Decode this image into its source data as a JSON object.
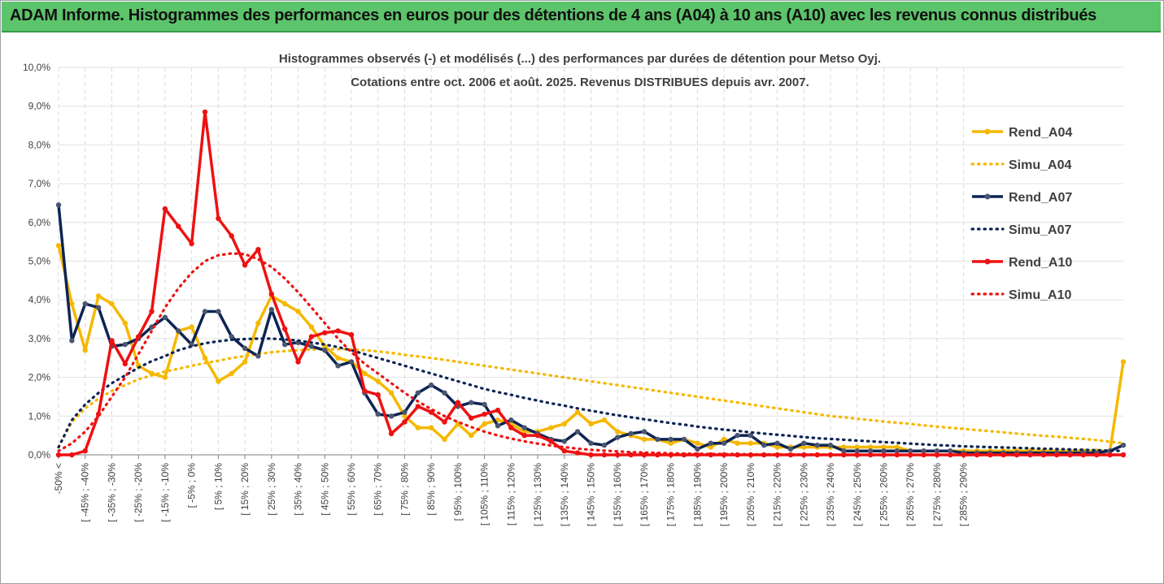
{
  "banner": {
    "title": "ADAM Informe. Histogrammes des performances en euros pour des détentions de 4 ans (A04) à 10 ans (A10) avec les revenus connus distribués"
  },
  "colors": {
    "banner": "#5cc46a",
    "A04": "#f5b800",
    "A07": "#0d2454",
    "A10": "#ee1111",
    "markerA07": "#4a5670"
  },
  "chart_data": {
    "type": "line",
    "title_line1": "Histogrammes observés (-) et modélisés (...) des performances par durées de détention pour Metso Oyj.",
    "title_line2": "Cotations entre oct. 2006 et août. 2025.  Revenus DISTRIBUES depuis avr. 2007.",
    "ylim": [
      0,
      10
    ],
    "y_ticks": [
      "0,0%",
      "1,0%",
      "2,0%",
      "3,0%",
      "4,0%",
      "5,0%",
      "6,0%",
      "7,0%",
      "8,0%",
      "9,0%",
      "10,0%"
    ],
    "x_labels": [
      "-50% <",
      "[ -45% ; -40%",
      "[ -35% ; -30%",
      "[ -25% ; -20%",
      "[ -15% ; -10%",
      "[ -5% ; 0%",
      "[ 5% ; 10%",
      "[ 15% ; 20%",
      "[ 25% ; 30%",
      "[ 35% ; 40%",
      "[ 45% ; 50%",
      "[ 55% ; 60%",
      "[ 65% ; 70%",
      "[ 75% ; 80%",
      "[ 85% ; 90%",
      "[ 95% ; 100%",
      "[ 105% ; 110%",
      "[ 115% ; 120%",
      "[ 125% ; 130%",
      "[ 135% ; 140%",
      "[ 145% ; 150%",
      "[ 155% ; 160%",
      "[ 165% ; 170%",
      "[ 175% ; 180%",
      "[ 185% ; 190%",
      "[ 195% ; 200%",
      "[ 205% ; 210%",
      "[ 215% ; 220%",
      "[ 225% ; 230%",
      "[ 235% ; 240%",
      "[ 245% ; 250%",
      "[ 255% ; 260%",
      "[ 265% ; 270%",
      "[ 275% ; 280%",
      "[ 285% ; 290%"
    ],
    "legend_position": "right",
    "series": [
      {
        "name": "Rend_A04",
        "style": "solid",
        "color": "#f5b800",
        "values": [
          5.4,
          3.9,
          2.7,
          4.1,
          3.9,
          3.4,
          2.3,
          2.1,
          2.0,
          3.2,
          3.3,
          2.5,
          1.9,
          2.1,
          2.4,
          3.4,
          4.1,
          3.9,
          3.7,
          3.3,
          2.8,
          2.5,
          2.4,
          2.1,
          1.9,
          1.6,
          1.0,
          0.7,
          0.7,
          0.4,
          0.8,
          0.5,
          0.8,
          0.9,
          0.8,
          0.6,
          0.6,
          0.7,
          0.8,
          1.1,
          0.8,
          0.9,
          0.6,
          0.5,
          0.4,
          0.4,
          0.3,
          0.4,
          0.3,
          0.2,
          0.4,
          0.3,
          0.3,
          0.3,
          0.2,
          0.2,
          0.2,
          0.2,
          0.2,
          0.2,
          0.2,
          0.2,
          0.2,
          0.2,
          0.1,
          0.1,
          0.1,
          0.1,
          0.1,
          0.1,
          0.1,
          0.1,
          0.1,
          0.1,
          0.1,
          0.1,
          0.1,
          0.1,
          0.1,
          0.1,
          2.4
        ]
      },
      {
        "name": "Simu_A04",
        "style": "dotted",
        "color": "#f5b800",
        "values": [
          0.2,
          0.85,
          1.2,
          1.45,
          1.65,
          1.8,
          1.95,
          2.05,
          2.15,
          2.22,
          2.3,
          2.37,
          2.43,
          2.5,
          2.55,
          2.6,
          2.65,
          2.68,
          2.7,
          2.72,
          2.73,
          2.73,
          2.72,
          2.7,
          2.67,
          2.63,
          2.58,
          2.54,
          2.5,
          2.45,
          2.4,
          2.35,
          2.3,
          2.25,
          2.2,
          2.15,
          2.1,
          2.05,
          2.0,
          1.95,
          1.9,
          1.85,
          1.8,
          1.75,
          1.7,
          1.65,
          1.6,
          1.55,
          1.5,
          1.45,
          1.4,
          1.35,
          1.3,
          1.25,
          1.2,
          1.15,
          1.1,
          1.05,
          1.0,
          0.97,
          0.93,
          0.9,
          0.86,
          0.83,
          0.8,
          0.76,
          0.73,
          0.7,
          0.67,
          0.64,
          0.61,
          0.58,
          0.55,
          0.52,
          0.49,
          0.47,
          0.44,
          0.41,
          0.38,
          0.34,
          0.3
        ]
      },
      {
        "name": "Rend_A07",
        "style": "solid",
        "color": "#0d2454",
        "values": [
          6.45,
          2.95,
          3.9,
          3.8,
          2.8,
          2.85,
          3.0,
          3.3,
          3.55,
          3.2,
          2.85,
          3.7,
          3.7,
          3.05,
          2.75,
          2.55,
          3.75,
          2.85,
          2.9,
          2.8,
          2.7,
          2.3,
          2.4,
          1.6,
          1.05,
          1.0,
          1.1,
          1.6,
          1.8,
          1.6,
          1.25,
          1.35,
          1.3,
          0.75,
          0.9,
          0.7,
          0.55,
          0.4,
          0.35,
          0.6,
          0.3,
          0.25,
          0.45,
          0.55,
          0.6,
          0.4,
          0.4,
          0.4,
          0.15,
          0.3,
          0.3,
          0.5,
          0.5,
          0.25,
          0.3,
          0.15,
          0.3,
          0.25,
          0.25,
          0.1,
          0.1,
          0.1,
          0.1,
          0.1,
          0.1,
          0.1,
          0.1,
          0.1,
          0.05,
          0.05,
          0.05,
          0.05,
          0.05,
          0.05,
          0.05,
          0.05,
          0.05,
          0.05,
          0.05,
          0.1,
          0.25
        ]
      },
      {
        "name": "Simu_A07",
        "style": "dotted",
        "color": "#0d2454",
        "values": [
          0.2,
          0.9,
          1.3,
          1.6,
          1.85,
          2.05,
          2.25,
          2.42,
          2.55,
          2.7,
          2.8,
          2.88,
          2.93,
          2.97,
          2.99,
          3.0,
          3.0,
          2.98,
          2.95,
          2.9,
          2.85,
          2.78,
          2.7,
          2.6,
          2.5,
          2.4,
          2.3,
          2.2,
          2.1,
          2.0,
          1.9,
          1.8,
          1.7,
          1.62,
          1.55,
          1.47,
          1.4,
          1.33,
          1.27,
          1.2,
          1.14,
          1.08,
          1.02,
          0.97,
          0.92,
          0.87,
          0.82,
          0.78,
          0.73,
          0.69,
          0.65,
          0.62,
          0.58,
          0.55,
          0.52,
          0.49,
          0.46,
          0.43,
          0.41,
          0.39,
          0.37,
          0.35,
          0.33,
          0.31,
          0.29,
          0.27,
          0.25,
          0.24,
          0.22,
          0.21,
          0.2,
          0.19,
          0.18,
          0.17,
          0.16,
          0.15,
          0.14,
          0.13,
          0.12,
          0.11,
          0.1
        ]
      },
      {
        "name": "Rend_A10",
        "style": "solid",
        "color": "#ee1111",
        "values": [
          0.0,
          0.0,
          0.1,
          1.05,
          2.95,
          2.35,
          3.05,
          3.7,
          6.35,
          5.9,
          5.45,
          8.85,
          6.1,
          5.65,
          4.9,
          5.3,
          4.15,
          3.25,
          2.4,
          3.05,
          3.15,
          3.2,
          3.1,
          1.65,
          1.55,
          0.55,
          0.85,
          1.25,
          1.1,
          0.85,
          1.35,
          0.95,
          1.05,
          1.15,
          0.7,
          0.5,
          0.5,
          0.35,
          0.1,
          0.05,
          0.0,
          0.0,
          0.0,
          0.0,
          0.0,
          0.0,
          0.0,
          0.0,
          0.0,
          0.0,
          0.0,
          0.0,
          0.0,
          0.0,
          0.0,
          0.0,
          0.0,
          0.0,
          0.0,
          0.0,
          0.0,
          0.0,
          0.0,
          0.0,
          0.0,
          0.0,
          0.0,
          0.0,
          0.0,
          0.0,
          0.0,
          0.0,
          0.0,
          0.0,
          0.0,
          0.0,
          0.0,
          0.0,
          0.0,
          0.0,
          0.0
        ]
      },
      {
        "name": "Simu_A10",
        "style": "dotted",
        "color": "#ee1111",
        "values": [
          0.1,
          0.3,
          0.6,
          1.0,
          1.5,
          2.0,
          2.6,
          3.2,
          3.8,
          4.3,
          4.7,
          5.0,
          5.15,
          5.2,
          5.18,
          5.05,
          4.85,
          4.55,
          4.2,
          3.8,
          3.4,
          3.0,
          2.65,
          2.35,
          2.1,
          1.85,
          1.6,
          1.38,
          1.18,
          1.0,
          0.85,
          0.72,
          0.6,
          0.5,
          0.42,
          0.35,
          0.29,
          0.24,
          0.2,
          0.16,
          0.13,
          0.11,
          0.09,
          0.07,
          0.06,
          0.05,
          0.04,
          0.03,
          0.03,
          0.02,
          0.02,
          0.02,
          0.01,
          0.01,
          0.01,
          0.01,
          0.01,
          0.01,
          0.0,
          0.0,
          0.0,
          0.0,
          0.0,
          0.0,
          0.0,
          0.0,
          0.0,
          0.0,
          0.0,
          0.0,
          0.0,
          0.0,
          0.0,
          0.0,
          0.0,
          0.0,
          0.0,
          0.0,
          0.0,
          0.0,
          0.0
        ]
      }
    ]
  }
}
